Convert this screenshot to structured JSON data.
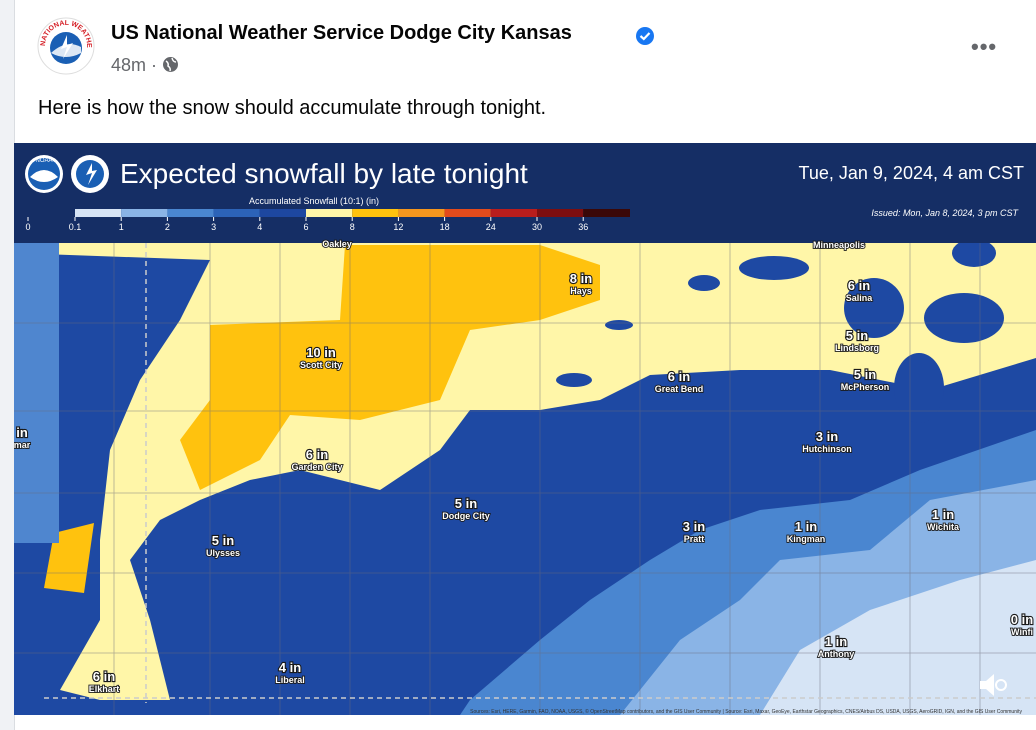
{
  "post": {
    "author": "US National Weather Service Dodge City Kansas",
    "time": "48m",
    "separator": "·",
    "text": "Here is how the snow should accumulate through tonight."
  },
  "logo": {
    "ring": "NATIONAL WEATHER SERVICE"
  },
  "map": {
    "title": "Expected snowfall by late tonight",
    "noaa": "NOAA",
    "date": "Tue, Jan 9, 2024, 4 am CST",
    "issued": "Issued: Mon, Jan 8, 2024, 3 pm CST",
    "legend": {
      "title": "Accumulated Snowfall (10:1) (in)",
      "labels": [
        "0",
        "0.1",
        "1",
        "2",
        "3",
        "4",
        "6",
        "8",
        "12",
        "18",
        "24",
        "30",
        "36"
      ],
      "colors": [
        "#d6e4f5",
        "#8ab4e6",
        "#4a86d0",
        "#2c63b8",
        "#1d47a0",
        "#fff6a8",
        "#ffc20e",
        "#f5961e",
        "#e34b1c",
        "#b81d1d",
        "#7d0e10",
        "#3a0808"
      ]
    },
    "places": [
      {
        "name": "Oakley"
      },
      {
        "name": "Minneapolis"
      },
      {
        "amount": "8 in",
        "name": "Hays"
      },
      {
        "amount": "6 in",
        "name": "Salina"
      },
      {
        "amount": "5 in",
        "name": "Lindsborg"
      },
      {
        "amount": "10 in",
        "name": "Scott City"
      },
      {
        "amount": "6 in",
        "name": "Great Bend"
      },
      {
        "amount": "5 in",
        "name": "McPherson"
      },
      {
        "amount": "in",
        "name": "mar"
      },
      {
        "amount": "3 in",
        "name": "Hutchinson"
      },
      {
        "amount": "6 in",
        "name": "Garden City"
      },
      {
        "amount": "5 in",
        "name": "Dodge City"
      },
      {
        "amount": "3 in",
        "name": "Pratt"
      },
      {
        "amount": "1 in",
        "name": "Kingman"
      },
      {
        "amount": "1 in",
        "name": "Wichita"
      },
      {
        "amount": "5 in",
        "name": "Ulysses"
      },
      {
        "amount": "0 in",
        "name": "Winfi"
      },
      {
        "amount": "1 in",
        "name": "Anthony"
      },
      {
        "amount": "4 in",
        "name": "Liberal"
      },
      {
        "amount": "6 in",
        "name": "Elkhart"
      }
    ],
    "attribution": "Sources: Esri, HERE, Garmin, FAO, NOAA, USGS, © OpenStreetMap contributors, and the GIS User Community | Source: Esri, Maxar, GeoEye, Earthstar Geographics, CNES/Airbus DS, USDA, USGS, AeroGRID, IGN, and the GIS User Community"
  }
}
